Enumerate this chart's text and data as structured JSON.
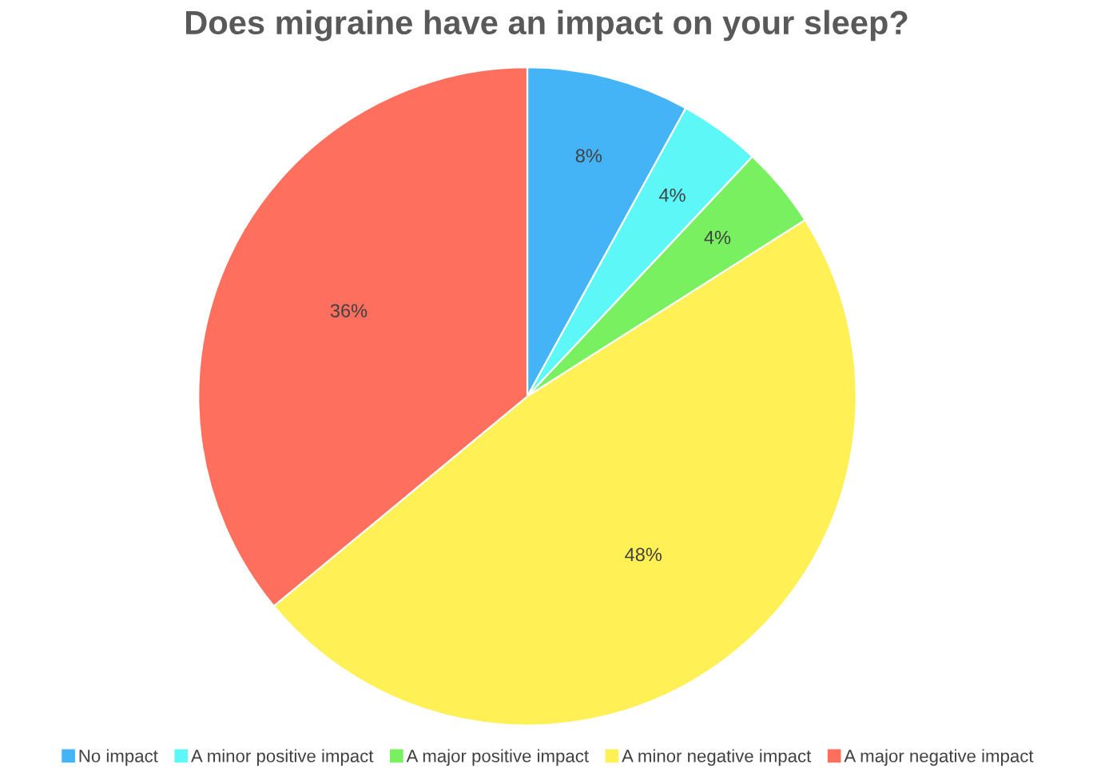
{
  "chart_data": {
    "type": "pie",
    "title": "Does migraine have an impact on your sleep?",
    "categories": [
      "No impact",
      "A minor positive impact",
      "A major positive impact",
      "A minor negative impact",
      "A major negative impact"
    ],
    "values": [
      8,
      4,
      4,
      48,
      36
    ],
    "colors": [
      "#45b4f7",
      "#5ef7f7",
      "#78f060",
      "#fff055",
      "#ff6f5e"
    ],
    "value_labels": [
      "8%",
      "4%",
      "4%",
      "48%",
      "36%"
    ],
    "legend": "bottom"
  }
}
